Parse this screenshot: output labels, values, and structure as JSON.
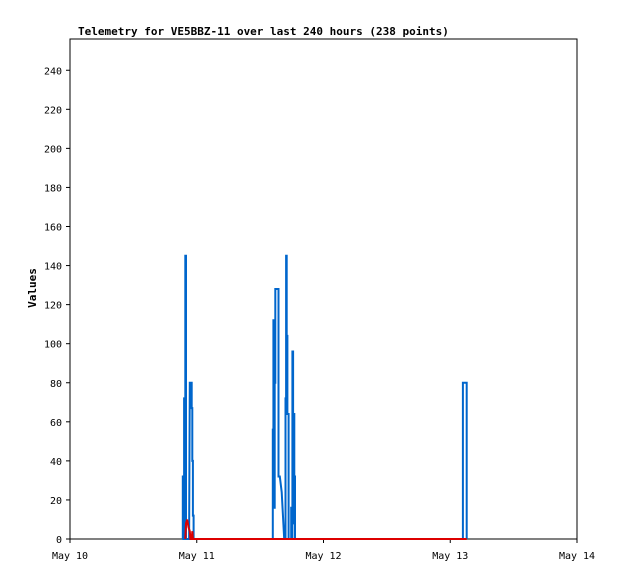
{
  "chart_data": {
    "type": "line",
    "title": "Telemetry for VE5BBZ-11 over last 240 hours (238 points)",
    "xlabel": "",
    "ylabel": "Values",
    "x_unit": "days since May 10 00:00",
    "xlim": [
      0,
      4
    ],
    "ylim": [
      0,
      256
    ],
    "grid": false,
    "x_ticks": [
      {
        "x": 0,
        "label": "May 10"
      },
      {
        "x": 1,
        "label": "May 11"
      },
      {
        "x": 2,
        "label": "May 12"
      },
      {
        "x": 3,
        "label": "May 13"
      },
      {
        "x": 4,
        "label": "May 14"
      }
    ],
    "y_ticks": [
      0,
      20,
      40,
      60,
      80,
      100,
      120,
      140,
      160,
      180,
      200,
      220,
      240
    ],
    "series": [
      {
        "color": "#0066cc",
        "points": [
          [
            0.89,
            0
          ],
          [
            0.89,
            32
          ],
          [
            0.895,
            32
          ],
          [
            0.895,
            0
          ],
          [
            0.9,
            0
          ],
          [
            0.9,
            72
          ],
          [
            0.905,
            72
          ],
          [
            0.905,
            0
          ],
          [
            0.91,
            0
          ],
          [
            0.91,
            145
          ],
          [
            0.915,
            145
          ],
          [
            0.915,
            0
          ],
          [
            0.92,
            0
          ],
          [
            0.94,
            0
          ],
          [
            0.945,
            80
          ],
          [
            0.96,
            80
          ],
          [
            0.96,
            67
          ],
          [
            0.965,
            67
          ],
          [
            0.965,
            40
          ],
          [
            0.97,
            40
          ],
          [
            0.97,
            12
          ],
          [
            0.975,
            12
          ],
          [
            0.975,
            0
          ],
          [
            1.0,
            0
          ],
          [
            1.6,
            0
          ],
          [
            1.6,
            56
          ],
          [
            1.605,
            56
          ],
          [
            1.605,
            112
          ],
          [
            1.61,
            112
          ],
          [
            1.61,
            16
          ],
          [
            1.615,
            16
          ],
          [
            1.615,
            80
          ],
          [
            1.62,
            80
          ],
          [
            1.62,
            128
          ],
          [
            1.645,
            128
          ],
          [
            1.645,
            32
          ],
          [
            1.655,
            32
          ],
          [
            1.67,
            24
          ],
          [
            1.69,
            0
          ],
          [
            1.7,
            0
          ],
          [
            1.7,
            72
          ],
          [
            1.705,
            72
          ],
          [
            1.705,
            145
          ],
          [
            1.71,
            145
          ],
          [
            1.71,
            104
          ],
          [
            1.715,
            104
          ],
          [
            1.715,
            64
          ],
          [
            1.725,
            64
          ],
          [
            1.725,
            0
          ],
          [
            1.745,
            0
          ],
          [
            1.745,
            16
          ],
          [
            1.75,
            16
          ],
          [
            1.75,
            0
          ],
          [
            1.755,
            0
          ],
          [
            1.755,
            96
          ],
          [
            1.76,
            96
          ],
          [
            1.76,
            8
          ],
          [
            1.765,
            8
          ],
          [
            1.765,
            64
          ],
          [
            1.77,
            64
          ],
          [
            1.77,
            32
          ],
          [
            1.775,
            32
          ],
          [
            1.775,
            0
          ],
          [
            2.0,
            0
          ],
          [
            3.1,
            0
          ],
          [
            3.1,
            80
          ],
          [
            3.13,
            80
          ],
          [
            3.13,
            0
          ]
        ]
      },
      {
        "color": "#dd0000",
        "points": [
          [
            0.91,
            0
          ],
          [
            0.915,
            8
          ],
          [
            0.925,
            10
          ],
          [
            0.935,
            6
          ],
          [
            0.945,
            4
          ],
          [
            0.95,
            0
          ],
          [
            0.96,
            0
          ],
          [
            0.965,
            4
          ],
          [
            0.97,
            0
          ],
          [
            1.0,
            0
          ],
          [
            1.6,
            0
          ],
          [
            2.0,
            0
          ],
          [
            3.13,
            0
          ]
        ]
      }
    ]
  }
}
